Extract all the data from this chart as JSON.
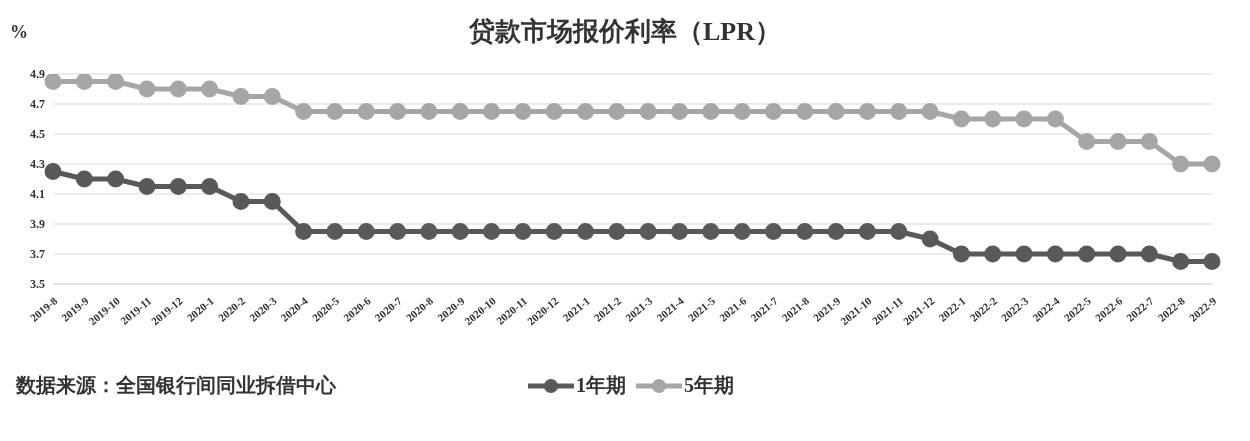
{
  "chart_data": {
    "type": "line",
    "title": "贷款市场报价利率（LPR）",
    "ylabel": "%",
    "categories": [
      "2019-8",
      "2019-9",
      "2019-10",
      "2019-11",
      "2019-12",
      "2020-1",
      "2020-2",
      "2020-3",
      "2020-4",
      "2020-5",
      "2020-6",
      "2020-7",
      "2020-8",
      "2020-9",
      "2020-10",
      "2020-11",
      "2020-12",
      "2021-1",
      "2021-2",
      "2021-3",
      "2021-4",
      "2021-5",
      "2021-6",
      "2021-7",
      "2021-8",
      "2021-9",
      "2021-10",
      "2021-11",
      "2021-12",
      "2022-1",
      "2022-2",
      "2022-3",
      "2022-4",
      "2022-5",
      "2022-6",
      "2022-7",
      "2022-8",
      "2022-9"
    ],
    "series": [
      {
        "name": "1年期",
        "color": "#595959",
        "values": [
          4.25,
          4.2,
          4.2,
          4.15,
          4.15,
          4.15,
          4.05,
          4.05,
          3.85,
          3.85,
          3.85,
          3.85,
          3.85,
          3.85,
          3.85,
          3.85,
          3.85,
          3.85,
          3.85,
          3.85,
          3.85,
          3.85,
          3.85,
          3.85,
          3.85,
          3.85,
          3.85,
          3.85,
          3.8,
          3.7,
          3.7,
          3.7,
          3.7,
          3.7,
          3.7,
          3.7,
          3.65,
          3.65
        ]
      },
      {
        "name": "5年期",
        "color": "#a6a6a6",
        "values": [
          4.85,
          4.85,
          4.85,
          4.8,
          4.8,
          4.8,
          4.75,
          4.75,
          4.65,
          4.65,
          4.65,
          4.65,
          4.65,
          4.65,
          4.65,
          4.65,
          4.65,
          4.65,
          4.65,
          4.65,
          4.65,
          4.65,
          4.65,
          4.65,
          4.65,
          4.65,
          4.65,
          4.65,
          4.65,
          4.6,
          4.6,
          4.6,
          4.6,
          4.45,
          4.45,
          4.45,
          4.3,
          4.3
        ]
      }
    ],
    "ylim": [
      3.5,
      4.9
    ],
    "yticks": [
      {
        "value": 3.5,
        "label": "3.5"
      },
      {
        "value": 3.7,
        "label": "3.7"
      },
      {
        "value": 3.9,
        "label": "3.9"
      },
      {
        "value": 4.1,
        "label": "4.1"
      },
      {
        "value": 4.3,
        "label": "4.3"
      },
      {
        "value": 4.5,
        "label": "4.5"
      },
      {
        "value": 4.7,
        "label": "4.7"
      },
      {
        "value": 4.9,
        "label": "4.9"
      }
    ],
    "grid": "y",
    "legend": "bottom",
    "marker": "circle",
    "line_style": "solid",
    "annotations": [
      "数据来源：全国银行间同业拆借中心"
    ]
  }
}
